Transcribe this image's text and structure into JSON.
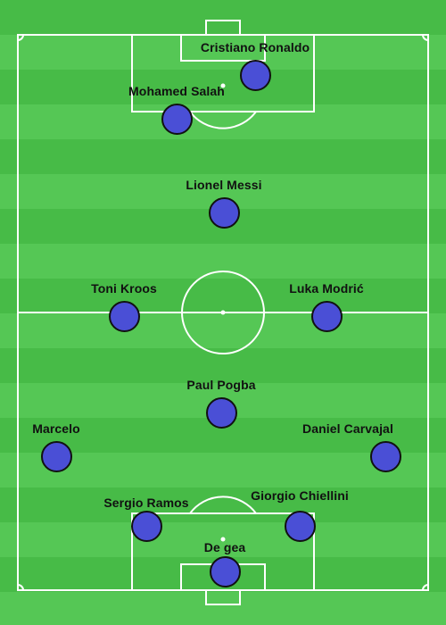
{
  "pitch": {
    "line_color": "#ffffff",
    "stripe_colors": [
      "#47bb47",
      "#55c755"
    ]
  },
  "players": [
    {
      "id": "ronaldo",
      "name": "Cristiano Ronaldo"
    },
    {
      "id": "salah",
      "name": "Mohamed Salah"
    },
    {
      "id": "messi",
      "name": "Lionel Messi"
    },
    {
      "id": "kroos",
      "name": "Toni Kroos"
    },
    {
      "id": "modric",
      "name": "Luka Modrić"
    },
    {
      "id": "pogba",
      "name": "Paul Pogba"
    },
    {
      "id": "marcelo",
      "name": "Marcelo"
    },
    {
      "id": "carvajal",
      "name": "Daniel Carvajal"
    },
    {
      "id": "ramos",
      "name": "Sergio Ramos"
    },
    {
      "id": "chiellini",
      "name": "Giorgio Chiellini"
    },
    {
      "id": "degea",
      "name": "De gea"
    }
  ],
  "colors": {
    "player_marker": "#4a4fd6",
    "marker_border": "#111111",
    "label_text": "#111111"
  }
}
